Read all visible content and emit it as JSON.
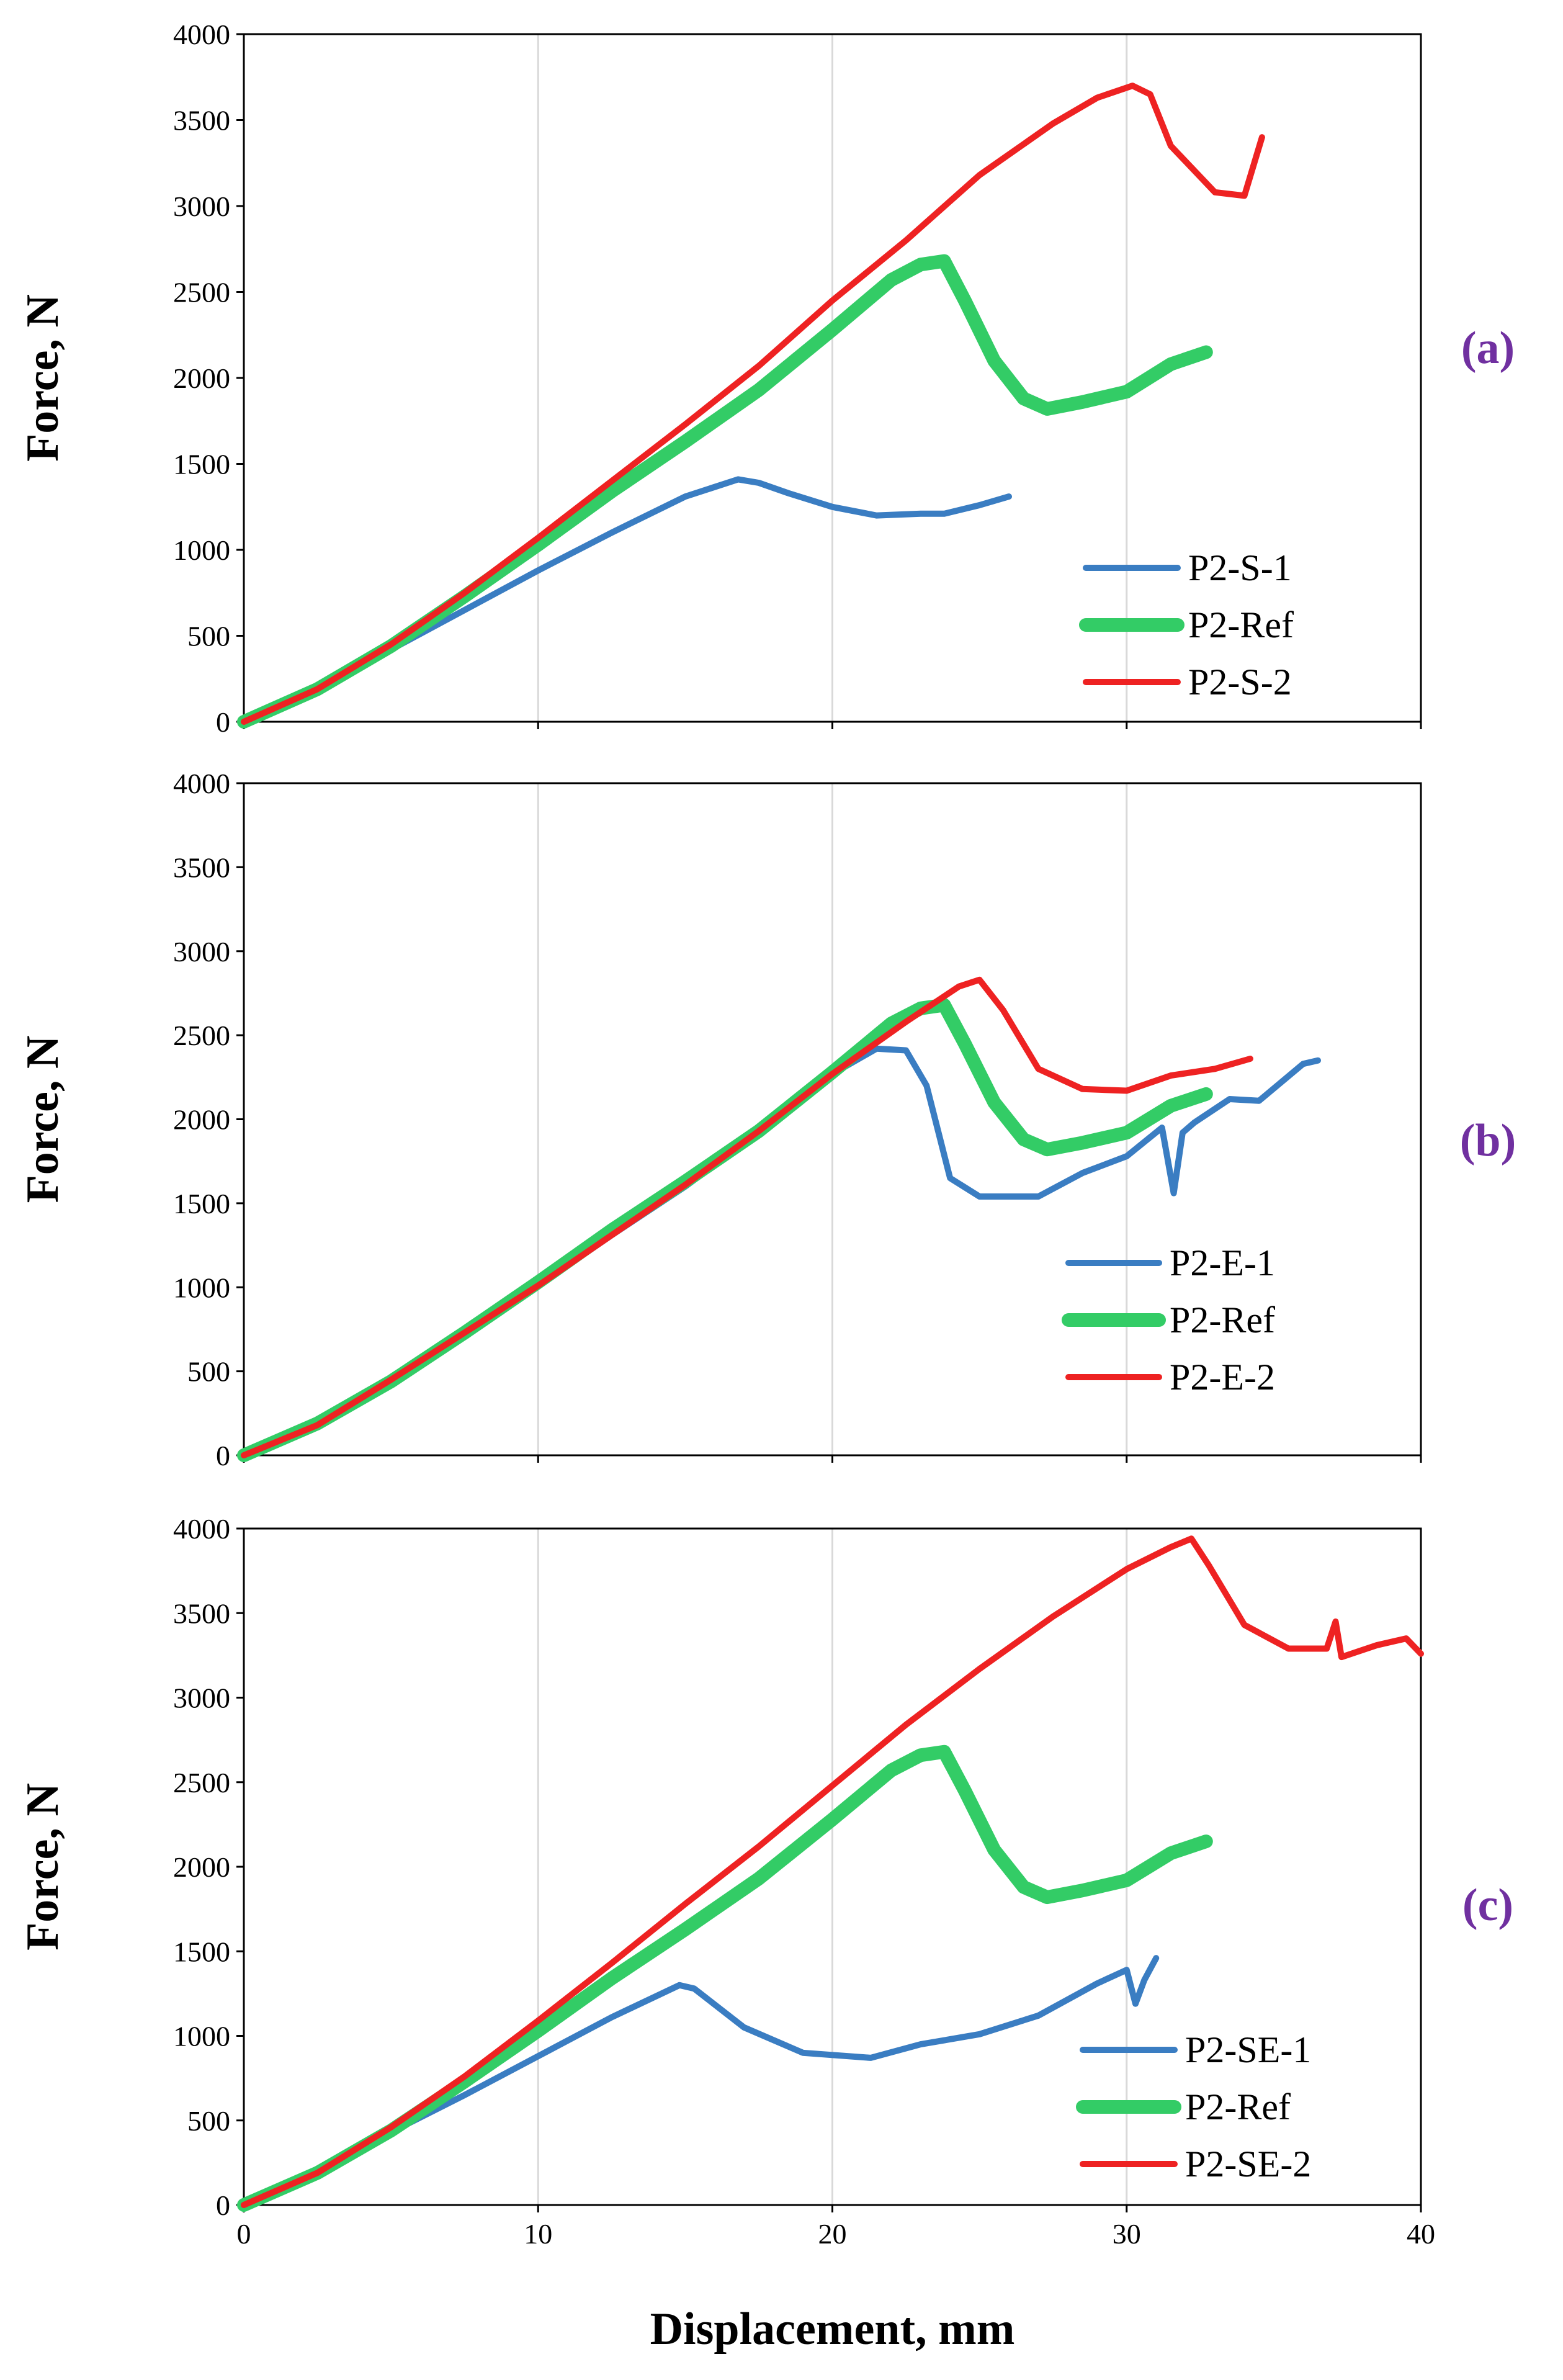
{
  "chart_data": [
    {
      "type": "line",
      "panel_label": "(a)",
      "ylabel": "Force, N",
      "xlabel": "",
      "xlim": [
        0,
        40
      ],
      "ylim": [
        0,
        4000
      ],
      "x_ticks": [
        "0",
        "10",
        "20",
        "30",
        "40"
      ],
      "y_ticks": [
        "0",
        "500",
        "1000",
        "1500",
        "2000",
        "2500",
        "3000",
        "3500",
        "4000"
      ],
      "grid": true,
      "legend_position": "bottom-right",
      "series": [
        {
          "name": "P2-S-1",
          "color": "#3a7dc2",
          "x": [
            0,
            2.5,
            5,
            7.5,
            10,
            12.5,
            15,
            16.8,
            17.5,
            18.5,
            20,
            21.5,
            23,
            23.8,
            25,
            26
          ],
          "y": [
            0,
            180,
            420,
            650,
            880,
            1100,
            1310,
            1410,
            1390,
            1330,
            1250,
            1200,
            1210,
            1210,
            1260,
            1310
          ]
        },
        {
          "name": "P2-Ref",
          "color": "#33cc66",
          "x": [
            0,
            2.5,
            5,
            7.5,
            10,
            12.5,
            15,
            17.5,
            20,
            22,
            23,
            23.8,
            24.5,
            25.5,
            26.5,
            27.3,
            28.5,
            30,
            31.5,
            32.7
          ],
          "y": [
            0,
            190,
            440,
            730,
            1030,
            1340,
            1630,
            1930,
            2280,
            2570,
            2660,
            2680,
            2450,
            2100,
            1880,
            1820,
            1860,
            1920,
            2080,
            2150
          ]
        },
        {
          "name": "P2-S-2",
          "color": "#ee2222",
          "x": [
            0,
            2.5,
            5,
            7.5,
            10,
            12.5,
            15,
            17.5,
            20,
            22.5,
            25,
            27.5,
            29,
            30.2,
            30.8,
            31.5,
            33,
            34,
            34.6
          ],
          "y": [
            0,
            190,
            450,
            750,
            1070,
            1400,
            1730,
            2070,
            2450,
            2800,
            3180,
            3480,
            3630,
            3700,
            3650,
            3350,
            3080,
            3060,
            3400
          ]
        }
      ]
    },
    {
      "type": "line",
      "panel_label": "(b)",
      "ylabel": "Force, N",
      "xlabel": "",
      "xlim": [
        0,
        40
      ],
      "ylim": [
        0,
        4000
      ],
      "x_ticks": [
        "0",
        "10",
        "20",
        "30",
        "40"
      ],
      "y_ticks": [
        "0",
        "500",
        "1000",
        "1500",
        "2000",
        "2500",
        "3000",
        "3500",
        "4000"
      ],
      "grid": true,
      "legend_position": "bottom-right",
      "series": [
        {
          "name": "P2-E-1",
          "color": "#3a7dc2",
          "x": [
            0,
            2.5,
            5,
            7.5,
            10,
            12.5,
            15,
            17.5,
            20,
            21.5,
            22.5,
            23.2,
            24,
            25,
            27,
            28.5,
            30,
            31.2,
            31.6,
            31.9,
            32.3,
            33.5,
            34.5,
            36,
            36.5
          ],
          "y": [
            0,
            180,
            450,
            730,
            1010,
            1310,
            1600,
            1920,
            2270,
            2420,
            2410,
            2200,
            1650,
            1540,
            1540,
            1680,
            1780,
            1950,
            1560,
            1920,
            1980,
            2120,
            2110,
            2330,
            2350
          ]
        },
        {
          "name": "P2-Ref",
          "color": "#33cc66",
          "x": [
            0,
            2.5,
            5,
            7.5,
            10,
            12.5,
            15,
            17.5,
            20,
            22,
            23,
            23.8,
            24.5,
            25.5,
            26.5,
            27.3,
            28.5,
            30,
            31.5,
            32.7
          ],
          "y": [
            0,
            190,
            440,
            730,
            1030,
            1340,
            1630,
            1930,
            2280,
            2570,
            2660,
            2680,
            2450,
            2100,
            1880,
            1820,
            1860,
            1920,
            2080,
            2150
          ]
        },
        {
          "name": "P2-E-2",
          "color": "#ee2222",
          "x": [
            0,
            2.5,
            5,
            7.5,
            10,
            12.5,
            15,
            17.5,
            20,
            22.5,
            24.3,
            25,
            25.8,
            27,
            28.5,
            30,
            31.5,
            33,
            34.2
          ],
          "y": [
            0,
            180,
            450,
            730,
            1010,
            1310,
            1610,
            1930,
            2270,
            2580,
            2790,
            2830,
            2650,
            2300,
            2180,
            2170,
            2260,
            2300,
            2360
          ]
        }
      ]
    },
    {
      "type": "line",
      "panel_label": "(c)",
      "ylabel": "Force, N",
      "xlabel": "Displacement, mm",
      "xlim": [
        0,
        40
      ],
      "ylim": [
        0,
        4000
      ],
      "x_ticks": [
        "0",
        "10",
        "20",
        "30",
        "40"
      ],
      "y_ticks": [
        "0",
        "500",
        "1000",
        "1500",
        "2000",
        "2500",
        "3000",
        "3500",
        "4000"
      ],
      "grid": true,
      "legend_position": "bottom-right",
      "series": [
        {
          "name": "P2-SE-1",
          "color": "#3a7dc2",
          "x": [
            0,
            2.5,
            5,
            7.5,
            10,
            12.5,
            14.8,
            15.3,
            17,
            19,
            21.3,
            23,
            25,
            27,
            29,
            30,
            30.3,
            30.6,
            31
          ],
          "y": [
            0,
            180,
            430,
            650,
            880,
            1110,
            1300,
            1280,
            1050,
            900,
            870,
            950,
            1010,
            1120,
            1310,
            1390,
            1190,
            1330,
            1460
          ]
        },
        {
          "name": "P2-Ref",
          "color": "#33cc66",
          "x": [
            0,
            2.5,
            5,
            7.5,
            10,
            12.5,
            15,
            17.5,
            20,
            22,
            23,
            23.8,
            24.5,
            25.5,
            26.5,
            27.3,
            28.5,
            30,
            31.5,
            32.7
          ],
          "y": [
            0,
            190,
            440,
            730,
            1030,
            1340,
            1630,
            1930,
            2280,
            2570,
            2660,
            2680,
            2450,
            2100,
            1880,
            1820,
            1860,
            1920,
            2080,
            2150
          ]
        },
        {
          "name": "P2-SE-2",
          "color": "#ee2222",
          "x": [
            0,
            2.5,
            5,
            7.5,
            10,
            12.5,
            15,
            17.5,
            20,
            22.5,
            25,
            27.5,
            30,
            31.5,
            32.2,
            32.8,
            34,
            35.5,
            36.8,
            37.1,
            37.3,
            38.5,
            39.5,
            40
          ],
          "y": [
            0,
            190,
            460,
            760,
            1090,
            1430,
            1780,
            2120,
            2480,
            2840,
            3170,
            3480,
            3760,
            3890,
            3940,
            3780,
            3430,
            3290,
            3290,
            3450,
            3240,
            3310,
            3350,
            3260
          ]
        }
      ]
    }
  ]
}
